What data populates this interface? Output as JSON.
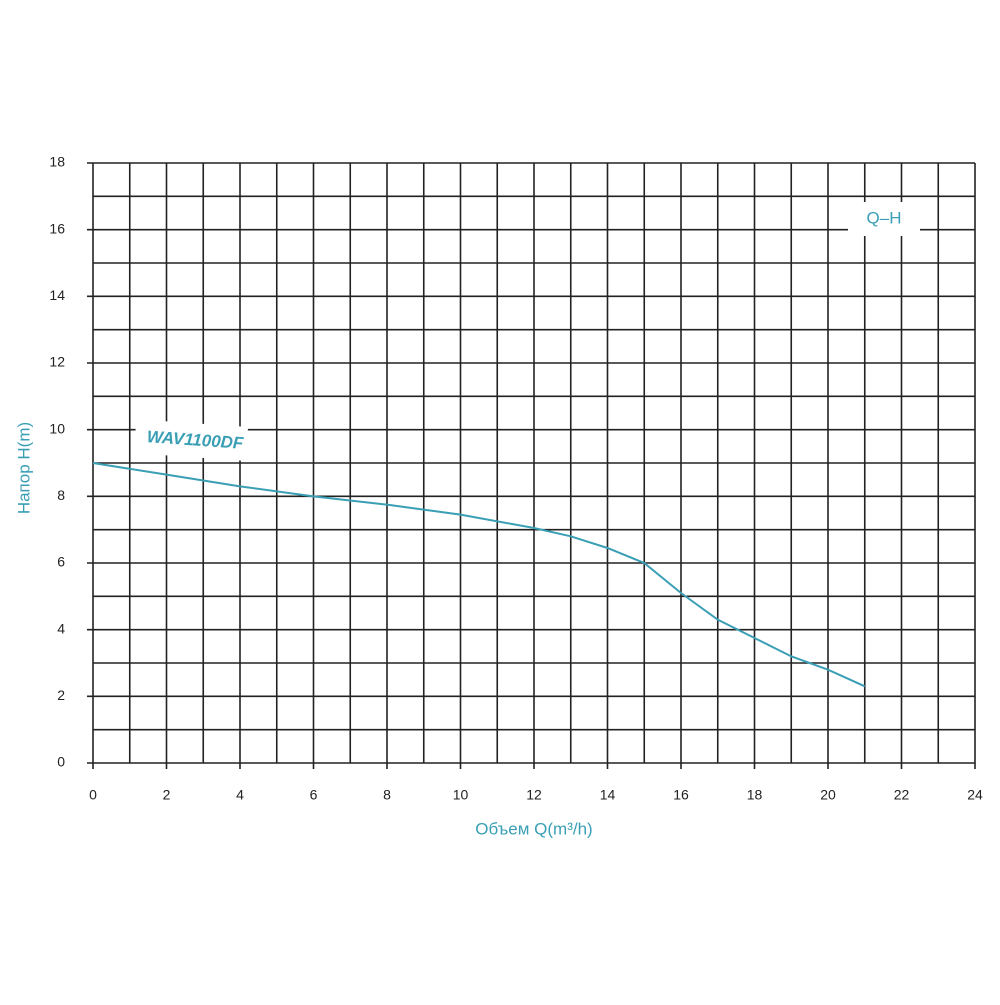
{
  "chart_data": {
    "type": "line",
    "x_label": "Объем Q(m³/h)",
    "y_label": "Напор H(m)",
    "annotation": "Q–H",
    "x": [
      0,
      2,
      4,
      6,
      8,
      10,
      12,
      13,
      14,
      15,
      16,
      17,
      18,
      19,
      20,
      21
    ],
    "series": [
      {
        "name": "WAV1100DF",
        "color": "#3a9fb5",
        "values": [
          9,
          8.65,
          8.3,
          8.0,
          7.75,
          7.45,
          7.05,
          6.8,
          6.45,
          6.0,
          5.1,
          4.3,
          3.75,
          3.2,
          2.8,
          2.3
        ]
      }
    ],
    "xlim": [
      0,
      24
    ],
    "ylim": [
      0,
      18
    ],
    "xticks": [
      0,
      2,
      4,
      6,
      8,
      10,
      12,
      14,
      16,
      18,
      20,
      22,
      24
    ],
    "yticks": [
      0,
      2,
      4,
      6,
      8,
      10,
      12,
      14,
      16,
      18
    ],
    "xminorticks": [
      1,
      3,
      5,
      7,
      9,
      11,
      13,
      15,
      17,
      19,
      21,
      23
    ],
    "yminorticks": [
      1,
      3,
      5,
      7,
      9,
      11,
      13,
      15,
      17
    ],
    "grid": true
  }
}
